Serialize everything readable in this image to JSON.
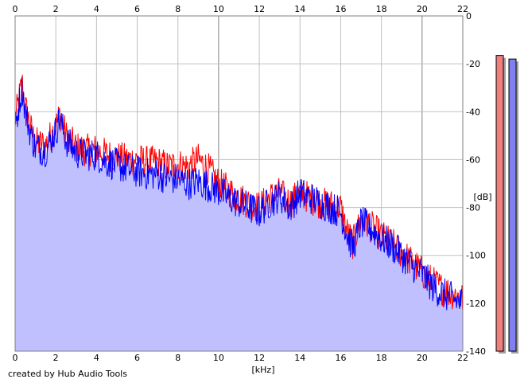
{
  "credit": "created by Hub Audio Tools",
  "colors": {
    "background": "#ffffff",
    "plot_bg": "#ffffff",
    "grid": "#c0c0c0",
    "grid_major": "#808080",
    "fill": "#c0c0ff",
    "left_channel": "#ff0000",
    "right_channel": "#0000ff",
    "meter_left": "#f08080",
    "meter_right": "#8080f0"
  },
  "chart_data": {
    "type": "line",
    "xlabel": "[kHz]",
    "ylabel": "[dB]",
    "xlim": [
      0,
      22
    ],
    "ylim": [
      -140,
      0
    ],
    "x_ticks": [
      "0",
      "2",
      "4",
      "6",
      "8",
      "10",
      "12",
      "14",
      "16",
      "18",
      "20",
      "22"
    ],
    "y_ticks": [
      "0",
      "-20",
      "-40",
      "-60",
      "-80",
      "-100",
      "-120",
      "-140"
    ],
    "grid": true,
    "fill_under_right_channel": true,
    "series": [
      {
        "color": "#ff0000",
        "x": [
          0,
          0.2,
          0.35,
          0.5,
          0.8,
          1.0,
          1.5,
          2.0,
          2.2,
          2.5,
          3.0,
          3.5,
          4.0,
          4.5,
          5.0,
          5.5,
          6.0,
          6.5,
          7.0,
          7.5,
          8.0,
          8.5,
          9.0,
          9.5,
          10.0,
          10.5,
          11.0,
          11.5,
          12.0,
          12.5,
          13.0,
          13.5,
          14.0,
          14.5,
          15.0,
          15.5,
          16.0,
          16.3,
          16.6,
          17.0,
          17.5,
          18.0,
          18.5,
          19.0,
          19.5,
          20.0,
          20.5,
          21.0,
          21.5,
          22.0
        ],
        "values": [
          -44,
          -34,
          -28,
          -38,
          -48,
          -53,
          -54,
          -46,
          -41,
          -50,
          -55,
          -56,
          -56,
          -58,
          -59,
          -60,
          -60,
          -61,
          -61,
          -63,
          -62,
          -63,
          -60,
          -64,
          -70,
          -73,
          -76,
          -78,
          -80,
          -76,
          -74,
          -78,
          -74,
          -76,
          -78,
          -79,
          -80,
          -90,
          -95,
          -85,
          -88,
          -92,
          -95,
          -99,
          -103,
          -107,
          -111,
          -114,
          -116,
          -118
        ]
      },
      {
        "color": "#0000ff",
        "x": [
          0,
          0.2,
          0.35,
          0.5,
          0.8,
          1.0,
          1.5,
          2.0,
          2.2,
          2.5,
          3.0,
          3.5,
          4.0,
          4.5,
          5.0,
          5.5,
          6.0,
          6.5,
          7.0,
          7.5,
          8.0,
          8.5,
          9.0,
          9.5,
          10.0,
          10.5,
          11.0,
          11.5,
          12.0,
          12.5,
          13.0,
          13.5,
          14.0,
          14.5,
          15.0,
          15.5,
          16.0,
          16.3,
          16.6,
          17.0,
          17.5,
          18.0,
          18.5,
          19.0,
          19.5,
          20.0,
          20.5,
          21.0,
          21.5,
          22.0
        ],
        "values": [
          -48,
          -36,
          -30,
          -40,
          -50,
          -55,
          -56,
          -48,
          -43,
          -52,
          -57,
          -58,
          -58,
          -61,
          -62,
          -64,
          -65,
          -66,
          -66,
          -68,
          -68,
          -70,
          -69,
          -71,
          -73,
          -76,
          -78,
          -80,
          -82,
          -78,
          -75,
          -80,
          -74,
          -76,
          -78,
          -80,
          -82,
          -91,
          -97,
          -86,
          -89,
          -93,
          -96,
          -100,
          -104,
          -108,
          -113,
          -116,
          -118,
          -120
        ]
      }
    ]
  },
  "meters": [
    {
      "channel": "L",
      "level_db": -16.5,
      "color": "#f08080"
    },
    {
      "channel": "R",
      "level_db": -18.0,
      "color": "#8080f0"
    }
  ]
}
